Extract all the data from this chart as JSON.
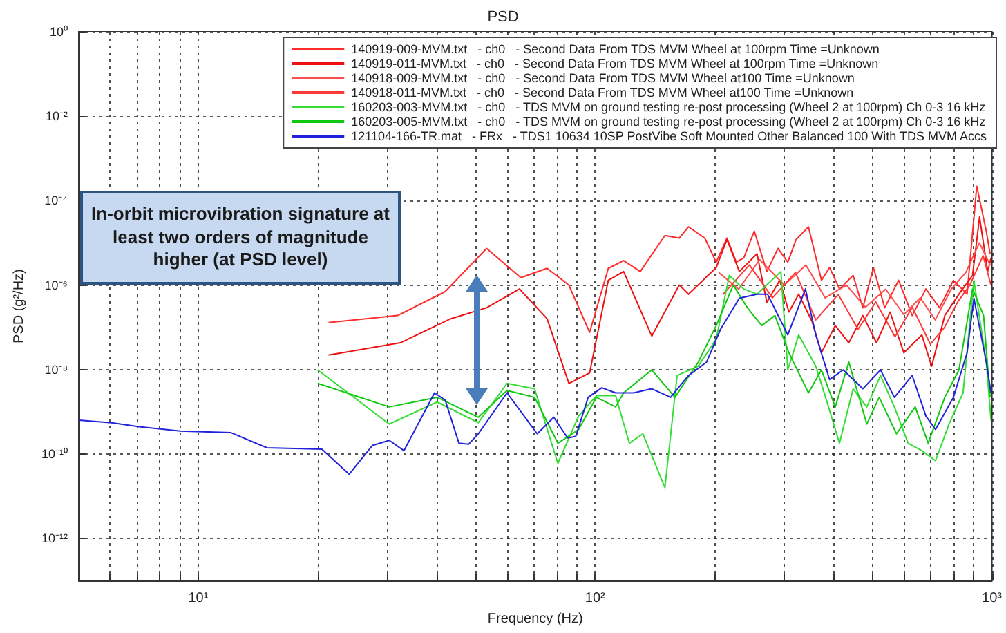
{
  "chart_data": {
    "type": "line",
    "title": "PSD",
    "xlabel": "Frequency (Hz)",
    "ylabel": "PSD (g²/Hz)",
    "log": "xy",
    "grid": true,
    "legend": "top right",
    "xlim": [
      5,
      1000
    ],
    "ylim": [
      1e-13,
      1
    ],
    "xticks": [
      {
        "value": 6,
        "label": null
      },
      {
        "value": 7,
        "label": null
      },
      {
        "value": 8,
        "label": null
      },
      {
        "value": 9,
        "label": null
      },
      {
        "value": 10,
        "label": "10¹"
      },
      {
        "value": 20,
        "label": null
      },
      {
        "value": 30,
        "label": null
      },
      {
        "value": 40,
        "label": null
      },
      {
        "value": 50,
        "label": null
      },
      {
        "value": 60,
        "label": null
      },
      {
        "value": 70,
        "label": null
      },
      {
        "value": 80,
        "label": null
      },
      {
        "value": 90,
        "label": null
      },
      {
        "value": 100,
        "label": "10²"
      },
      {
        "value": 200,
        "label": null
      },
      {
        "value": 300,
        "label": null
      },
      {
        "value": 400,
        "label": null
      },
      {
        "value": 500,
        "label": null
      },
      {
        "value": 600,
        "label": null
      },
      {
        "value": 700,
        "label": null
      },
      {
        "value": 800,
        "label": null
      },
      {
        "value": 900,
        "label": null
      },
      {
        "value": 1000,
        "label": "10³"
      }
    ],
    "yticks": [
      {
        "value": 1e-12,
        "label": "10⁻¹²"
      },
      {
        "value": 1e-10,
        "label": "10⁻¹⁰"
      },
      {
        "value": 1e-08,
        "label": "10⁻⁸"
      },
      {
        "value": 1e-06,
        "label": "10⁻⁶"
      },
      {
        "value": 0.0001,
        "label": "10⁻⁴"
      },
      {
        "value": 0.01,
        "label": "10⁻²"
      },
      {
        "value": 1,
        "label": "10⁰"
      }
    ],
    "annotations": [
      "In-orbit microvibration signature at least two orders of magnitude higher (at PSD level)"
    ],
    "series": [
      {
        "name": "140919-009-MVM.txt   - ch0   - Second Data From TDS MVM Wheel at 100rpm Time =Unknown",
        "color": "#ff2a2a",
        "x": [
          21.3,
          31.8,
          41.9,
          53.3,
          65,
          75.7,
          85.9,
          96.9,
          108,
          118,
          130,
          150,
          163,
          172,
          189,
          202,
          215,
          227,
          237,
          252,
          271,
          289,
          306,
          321,
          345,
          372,
          390,
          413,
          447,
          473,
          503,
          537,
          582,
          630,
          682,
          738,
          800,
          866,
          916,
          968,
          990
        ],
        "values": [
          1.3e-07,
          1.9e-07,
          7e-07,
          7.4e-06,
          1.5e-06,
          2.5e-06,
          1e-06,
          7.6e-08,
          2.5e-06,
          3.8e-06,
          2.1e-06,
          1.5e-05,
          1.3e-05,
          2.4e-05,
          1.3e-05,
          3.5e-06,
          1.3e-05,
          3.5e-06,
          4.4e-06,
          1.9e-05,
          2.1e-06,
          7.4e-06,
          3.5e-06,
          1.2e-05,
          2.4e-05,
          1.3e-06,
          2.6e-06,
          8.1e-07,
          1.7e-06,
          2.9e-07,
          2.6e-06,
          2.9e-07,
          1.3e-06,
          1.9e-07,
          8.1e-07,
          2.9e-07,
          1.3e-06,
          6.1e-07,
          0.00022,
          1.9e-05,
          5.5e-06
        ]
      },
      {
        "name": "140919-011-MVM.txt   - ch0   - Second Data From TDS MVM Wheel at 100rpm Time =Unknown",
        "color": "#ee1111",
        "x": [
          21.3,
          32.3,
          43.3,
          53.3,
          64.5,
          75.7,
          85.9,
          96.9,
          108,
          118,
          139,
          163,
          172,
          202,
          215,
          231,
          256,
          271,
          292,
          308,
          326,
          352,
          372,
          403,
          436,
          473,
          512,
          554,
          600,
          666,
          705,
          761,
          826,
          894,
          931,
          976,
          995
        ],
        "values": [
          2.2e-08,
          4.3e-08,
          1.6e-07,
          2.9e-07,
          8.1e-07,
          1.6e-07,
          4.7e-09,
          8.3e-09,
          1.3e-06,
          2.1e-06,
          6.2e-08,
          1e-06,
          6.1e-07,
          2.6e-06,
          1.2e-05,
          2.1e-06,
          5.5e-06,
          3.9e-07,
          1.3e-06,
          2.3e-07,
          6.1e-07,
          1.4e-07,
          2.5e-08,
          1.1e-07,
          4.3e-08,
          1.9e-07,
          4.3e-08,
          2.3e-07,
          2.5e-08,
          6.6e-08,
          1.2e-08,
          1.9e-07,
          6.1e-07,
          1.7e-06,
          4.1e-05,
          2.1e-06,
          4.4e-06
        ]
      },
      {
        "name": "140918-009-MVM.txt   - ch0   - Second Data From TDS MVM Wheel at100 Time =Unknown",
        "color": "#ff4d4d",
        "x": [
          205,
          230,
          260,
          300,
          340,
          380,
          430,
          480,
          540,
          600,
          660,
          720,
          790,
          860,
          930,
          990
        ],
        "values": [
          2e-06,
          8e-07,
          4e-06,
          1e-06,
          3e-06,
          5e-07,
          1e-06,
          3e-07,
          8e-07,
          2e-07,
          5e-07,
          1.5e-07,
          8e-07,
          2e-06,
          1e-05,
          3e-06
        ]
      },
      {
        "name": "140918-011-MVM.txt   - ch0   - Second Data From TDS MVM Wheel at100 Time =Unknown",
        "color": "#ff3838",
        "x": [
          210,
          245,
          280,
          320,
          360,
          410,
          460,
          510,
          570,
          630,
          700,
          760,
          820,
          880,
          950,
          995
        ],
        "values": [
          6e-07,
          3e-06,
          5e-07,
          2e-06,
          1.5e-07,
          6e-07,
          9e-08,
          4e-07,
          6e-08,
          3e-07,
          4e-08,
          1e-07,
          4e-07,
          1e-06,
          5e-06,
          1e-06
        ]
      },
      {
        "name": "160203-003-MVM.txt   - ch0   - TDS MVM on ground testing re-post processing (Wheel 2 at 100rpm) Ch 0-3 16 kHz",
        "color": "#33dd33",
        "x": [
          20,
          30.3,
          40,
          50.8,
          60,
          70.4,
          80.6,
          90.9,
          100.8,
          112.7,
          122,
          132,
          150,
          161,
          182,
          202,
          218,
          237,
          256,
          294,
          306,
          326,
          360,
          381,
          413,
          447,
          484,
          524,
          568,
          615,
          666,
          721,
          780,
          846,
          901,
          968,
          995
        ],
        "values": [
          9.8e-09,
          5.1e-10,
          1.7e-09,
          5.5e-10,
          4.7e-09,
          3.5e-09,
          6e-11,
          7.9e-10,
          2.4e-09,
          2.4e-09,
          1.8e-10,
          3e-10,
          1.6e-11,
          7.2e-09,
          1.2e-08,
          5.3e-08,
          1.7e-06,
          8.1e-07,
          6.1e-07,
          2.1e-06,
          9.8e-09,
          6.6e-08,
          1.2e-08,
          2.2e-09,
          1.8e-10,
          3.5e-09,
          1.3e-09,
          7.2e-09,
          1.3e-09,
          1.8e-10,
          1.2e-10,
          6.9e-11,
          5.1e-10,
          2.8e-09,
          1.3e-06,
          1.5e-08,
          6.3e-10
        ]
      },
      {
        "name": "160203-005-MVM.txt   - ch0   - TDS MVM on ground testing re-post processing (Wheel 2 at 100rpm) Ch 0-3 16 kHz",
        "color": "#11c811",
        "x": [
          20,
          30.3,
          40,
          50.8,
          60,
          70.4,
          80.6,
          90.9,
          100.8,
          112.7,
          118,
          139,
          159,
          182,
          202,
          223,
          242,
          263,
          284,
          308,
          345,
          372,
          403,
          436,
          484,
          520,
          575,
          641,
          691,
          761,
          826,
          894,
          953,
          990
        ],
        "values": [
          4.7e-09,
          1.3e-09,
          2.2e-09,
          7.4e-10,
          3.2e-09,
          2.2e-09,
          1.8e-10,
          3.8e-10,
          2.2e-09,
          1.3e-09,
          2.8e-09,
          9.8e-09,
          2.2e-09,
          1.5e-08,
          1.1e-07,
          1e-06,
          2.9e-07,
          1.1e-07,
          1.9e-07,
          2.5e-08,
          2.8e-09,
          9.8e-09,
          1.3e-09,
          1.5e-08,
          5.1e-10,
          2.2e-09,
          3e-10,
          1.3e-09,
          1.8e-10,
          2.2e-09,
          9.8e-09,
          8.1e-07,
          1.9e-07,
          2.2e-09
        ]
      },
      {
        "name": "121104-166-TR.mat   - FRx   - TDS1 10634 10SP PostVibe Soft Mounted Other Balanced 100 With TDS MVM Accs",
        "color": "#2222dd",
        "x": [
          5,
          6.05,
          7.1,
          9,
          12.1,
          14.9,
          20.5,
          24,
          27.5,
          30.3,
          33,
          39.4,
          41.9,
          45.4,
          48,
          50.8,
          60,
          71.5,
          78.7,
          85.3,
          89.4,
          96.1,
          104,
          112.7,
          125,
          139,
          155,
          172,
          191,
          207,
          231,
          256,
          272,
          306,
          339,
          360,
          390,
          422,
          473,
          524,
          568,
          630,
          682,
          721,
          800,
          866,
          901,
          968,
          995
        ],
        "values": [
          6.3e-10,
          5.5e-10,
          4.4e-10,
          3.5e-10,
          3.2e-10,
          1.4e-10,
          1.3e-10,
          3.3e-11,
          1.6e-10,
          2.1e-10,
          1.2e-10,
          2.8e-09,
          1.9e-09,
          1.8e-10,
          1.7e-10,
          3e-10,
          2.8e-09,
          3e-10,
          7.4e-10,
          2.4e-10,
          2.6e-10,
          2.2e-09,
          3.7e-09,
          2.8e-09,
          2.8e-09,
          3.5e-09,
          2.2e-09,
          7.2e-09,
          1.5e-08,
          8.9e-08,
          4.9e-07,
          6.1e-07,
          6.1e-07,
          6.6e-08,
          8.1e-07,
          6.6e-08,
          5.8e-09,
          9.8e-09,
          3.5e-09,
          9.8e-09,
          2.2e-09,
          7.2e-09,
          7.9e-10,
          3.8e-10,
          2.2e-09,
          2.5e-08,
          4.9e-07,
          1.5e-08,
          2.8e-09
        ]
      }
    ]
  }
}
